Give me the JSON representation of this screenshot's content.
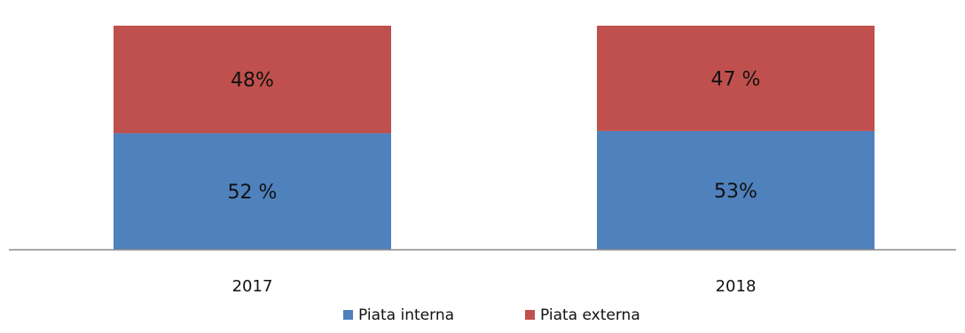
{
  "chart_data": {
    "type": "bar",
    "stacked": true,
    "categories": [
      "2017",
      "2018"
    ],
    "series": [
      {
        "name": "Piata interna",
        "values": [
          52,
          53
        ],
        "labels": [
          "52 %",
          "53%"
        ],
        "color": "#4F81BD"
      },
      {
        "name": "Piata externa",
        "values": [
          48,
          47
        ],
        "labels": [
          "48%",
          "47 %"
        ],
        "color": "#C0504D"
      }
    ],
    "title": "",
    "xlabel": "",
    "ylabel": "",
    "ylim": [
      0,
      100
    ],
    "grid": false,
    "legend": "bottom",
    "axis_color": "#8C8C8C"
  }
}
